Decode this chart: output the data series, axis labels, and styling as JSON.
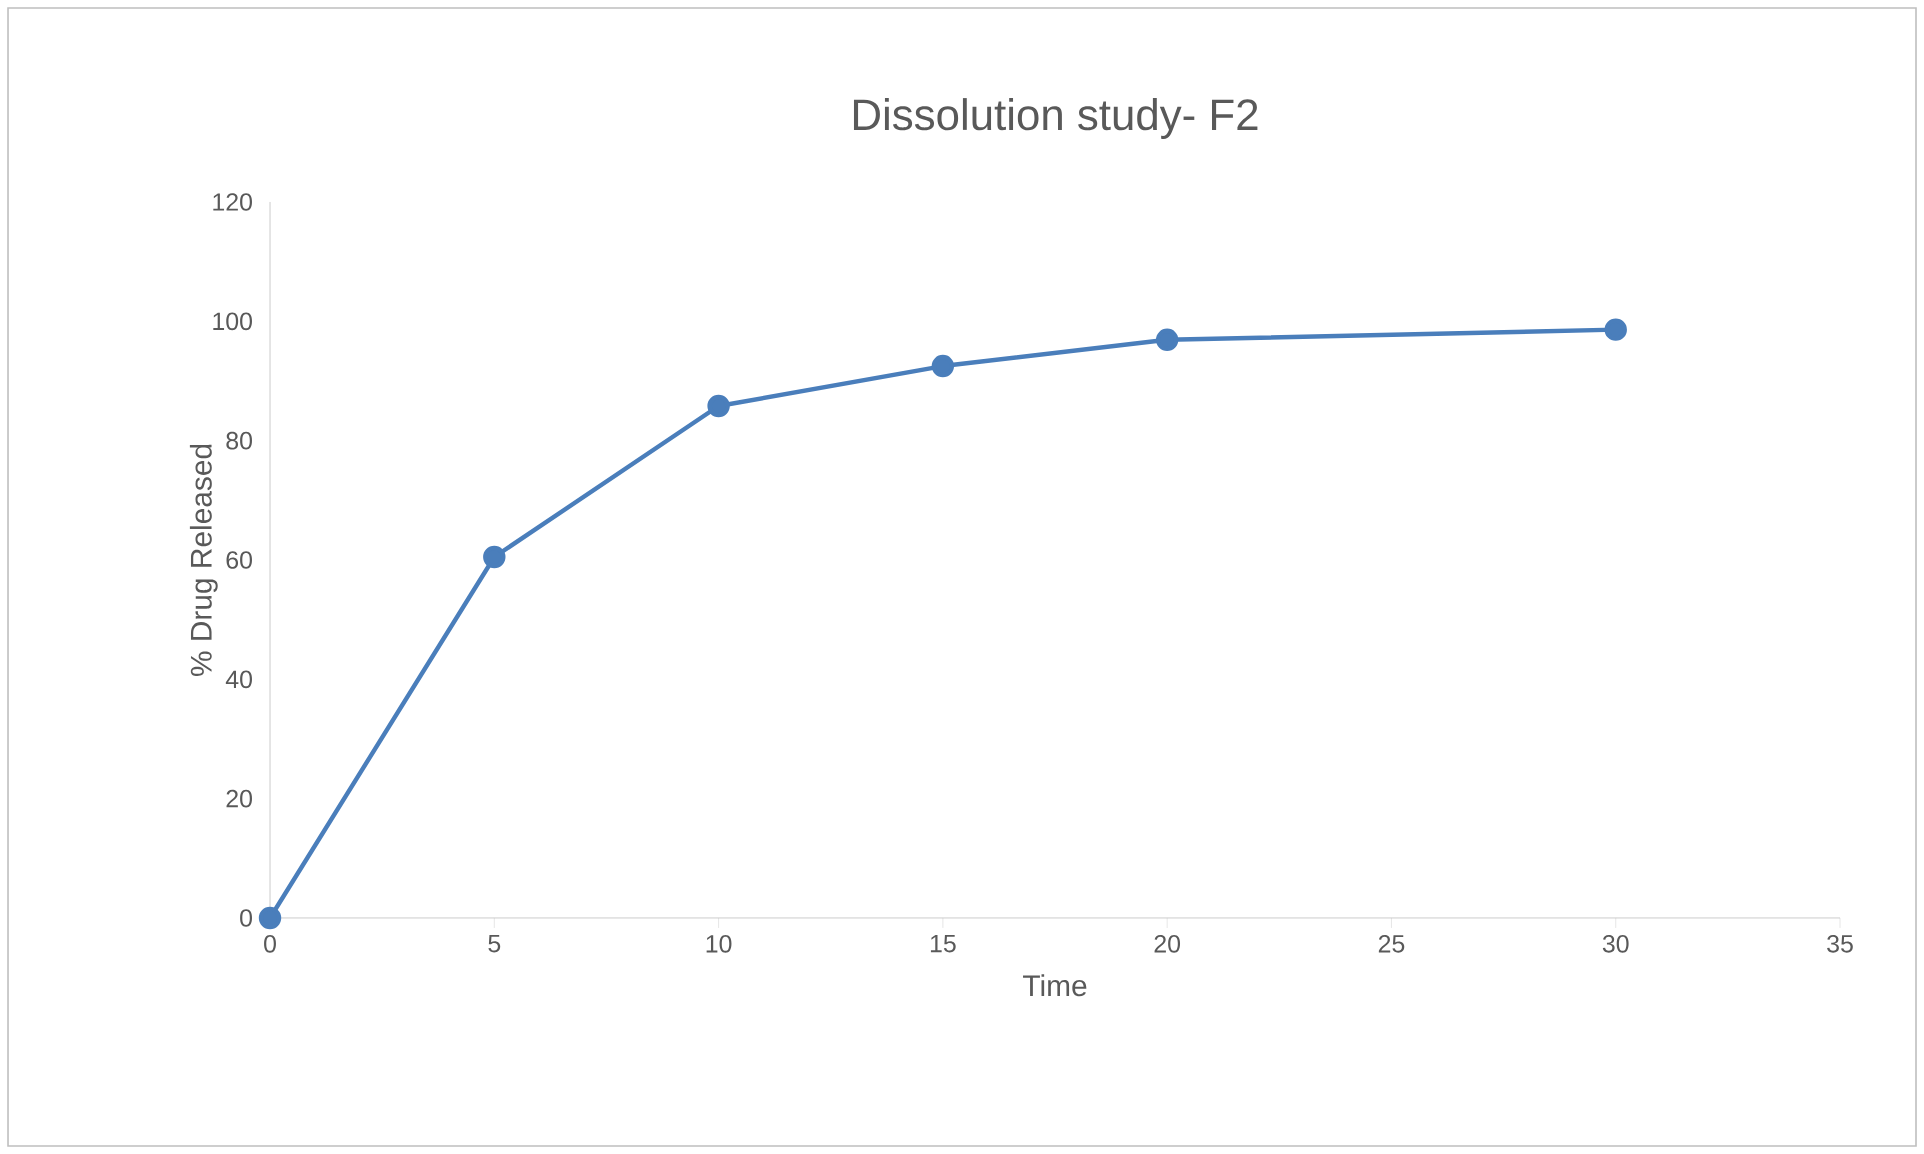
{
  "chart_data": {
    "type": "line",
    "title": "Dissolution study- F2",
    "xlabel": "Time",
    "ylabel": "% Drug Released",
    "x": [
      0,
      5,
      10,
      15,
      20,
      30
    ],
    "series": [
      {
        "color": "#4a7ebb",
        "values": [
          0,
          60.5,
          85.8,
          92.5,
          96.9,
          98.6
        ]
      }
    ],
    "xlim": [
      0,
      35
    ],
    "ylim": [
      0,
      120
    ],
    "xticks": [
      0,
      5,
      10,
      15,
      20,
      25,
      30,
      35
    ],
    "yticks": [
      0,
      20,
      40,
      60,
      80,
      100,
      120
    ],
    "marker": "circle"
  }
}
